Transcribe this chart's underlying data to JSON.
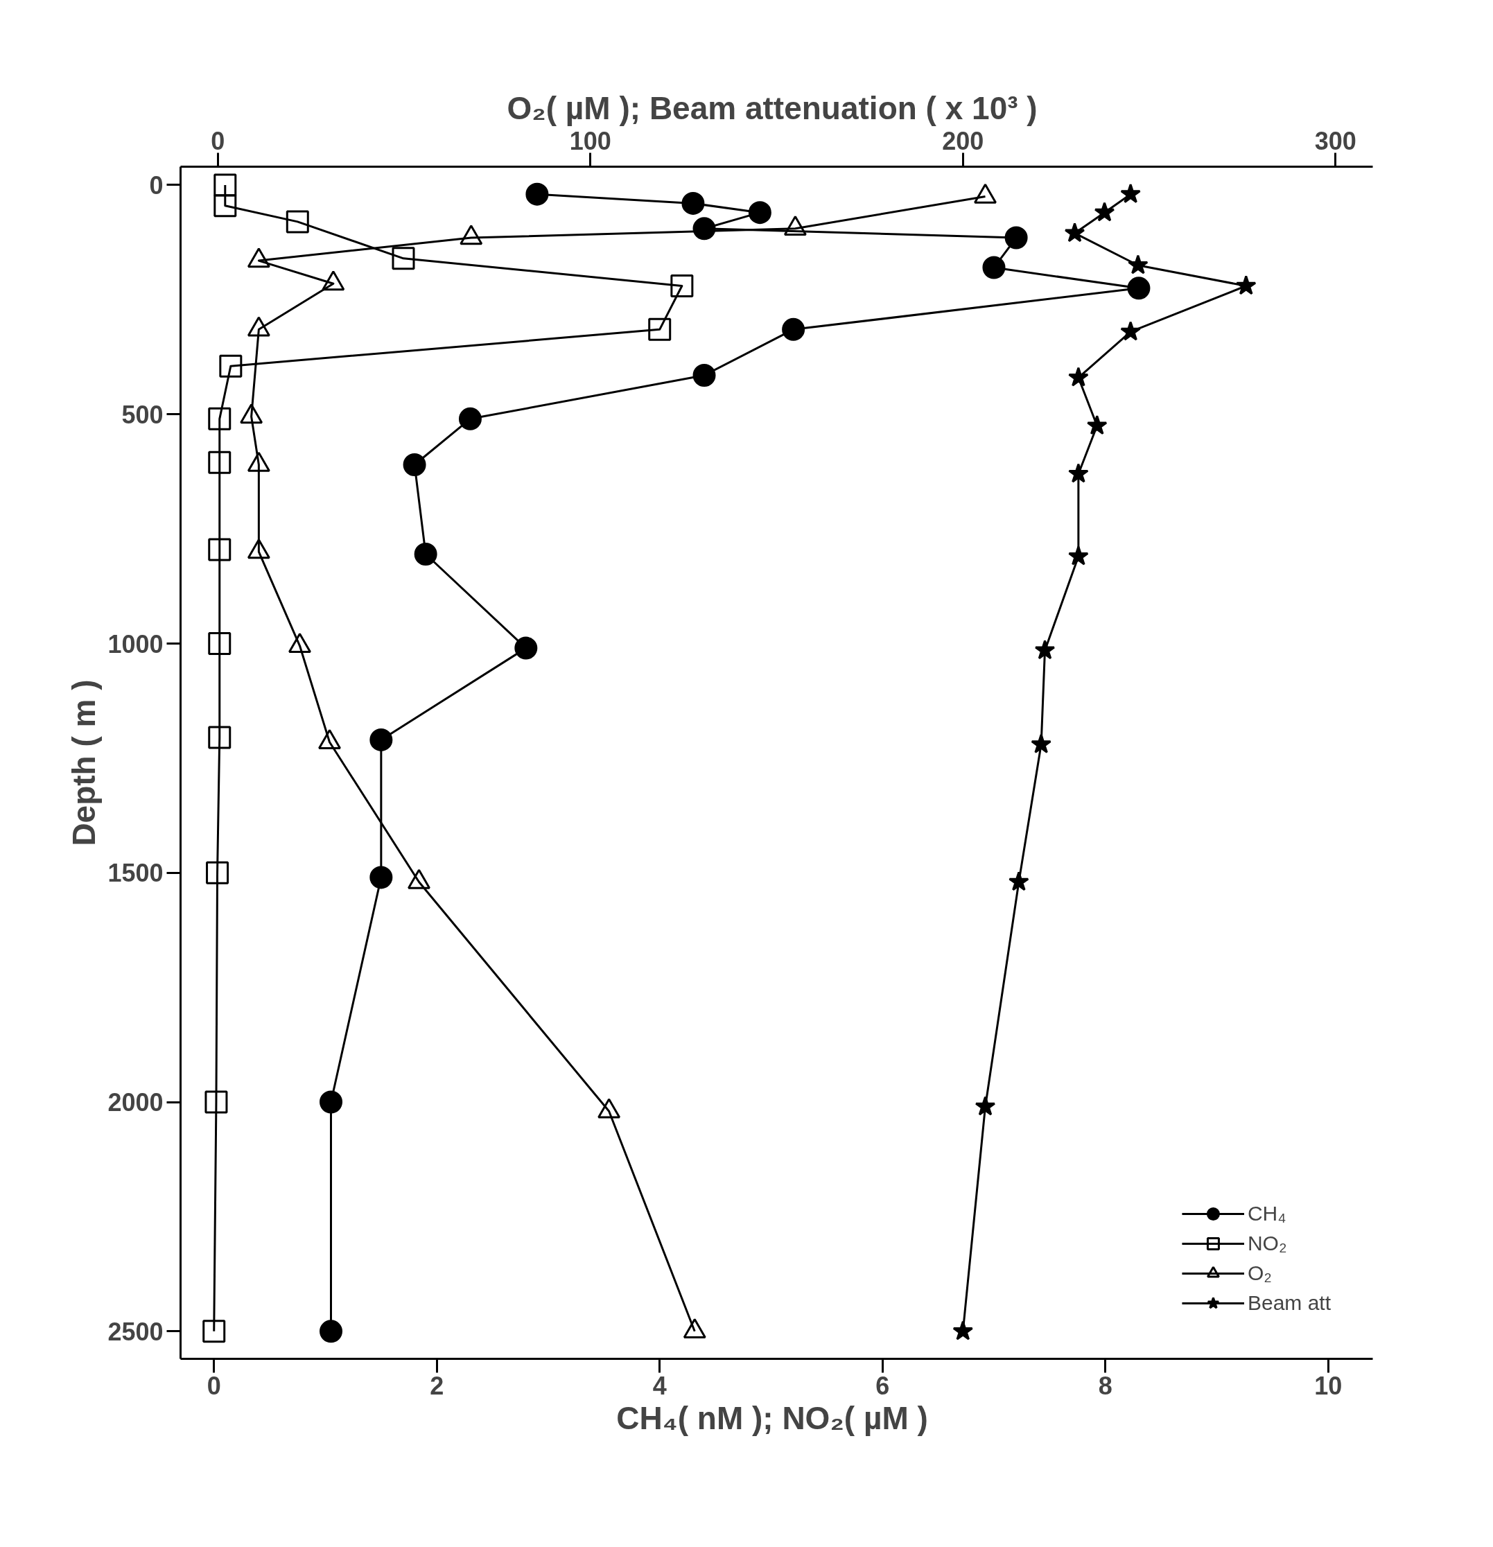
{
  "chart_data": {
    "type": "line",
    "orientation": "horizontal",
    "xlabel": "CH₄( nM );  NO₂( µM )",
    "x2label": "O₂( µM );  Beam attenuation ( x 10³ )",
    "ylabel": "Depth ( m )",
    "xlim": [
      -0.3,
      10.4
    ],
    "xticks": [
      0,
      2,
      4,
      6,
      8,
      10
    ],
    "x2lim": [
      -10,
      310
    ],
    "x2ticks": [
      0,
      100,
      200,
      300
    ],
    "ylim": [
      2560,
      -40
    ],
    "yticks": [
      0,
      500,
      1000,
      1500,
      2000,
      2500
    ],
    "grid": false,
    "legend": "bottom right",
    "series": [
      {
        "name": "CH₄",
        "color": "#000000",
        "marker": "circle",
        "x": [
          20,
          40,
          60,
          95,
          115,
          180,
          225,
          315,
          415,
          510,
          610,
          805,
          1010,
          1210,
          1510,
          2000,
          2500
        ],
        "values": [
          2.9,
          4.3,
          4.9,
          4.4,
          7.2,
          7.0,
          8.3,
          5.2,
          4.4,
          2.3,
          1.8,
          1.9,
          2.8,
          1.5,
          1.5,
          1.05,
          1.05
        ]
      },
      {
        "name": "NO₂",
        "color": "#000000",
        "marker": "square",
        "x": [
          0,
          45,
          80,
          160,
          220,
          315,
          395,
          510,
          605,
          795,
          1000,
          1205,
          1500,
          2000,
          2500
        ],
        "values": [
          0.1,
          0.1,
          0.75,
          1.7,
          4.2,
          4.0,
          0.15,
          0.05,
          0.05,
          0.05,
          0.05,
          0.05,
          0.03,
          0.02,
          0.0
        ]
      },
      {
        "name": "O₂",
        "color": "#000000",
        "marker": "triangle",
        "axis": "x2",
        "x": [
          25,
          95,
          115,
          165,
          215,
          315,
          505,
          610,
          800,
          1005,
          1215,
          1520,
          2020,
          2500
        ],
        "values": [
          206,
          155,
          68,
          11,
          31,
          11,
          9,
          11,
          11,
          22,
          30,
          54,
          105,
          128
        ]
      },
      {
        "name": "Beam att",
        "color": "#000000",
        "marker": "star",
        "axis": "x2",
        "x": [
          20,
          60,
          105,
          175,
          220,
          320,
          420,
          525,
          630,
          810,
          1015,
          1220,
          1520,
          2010,
          2500
        ],
        "values": [
          245,
          238,
          230,
          247,
          276,
          245,
          231,
          236,
          231,
          231,
          222,
          221,
          215,
          206,
          200
        ]
      }
    ]
  }
}
